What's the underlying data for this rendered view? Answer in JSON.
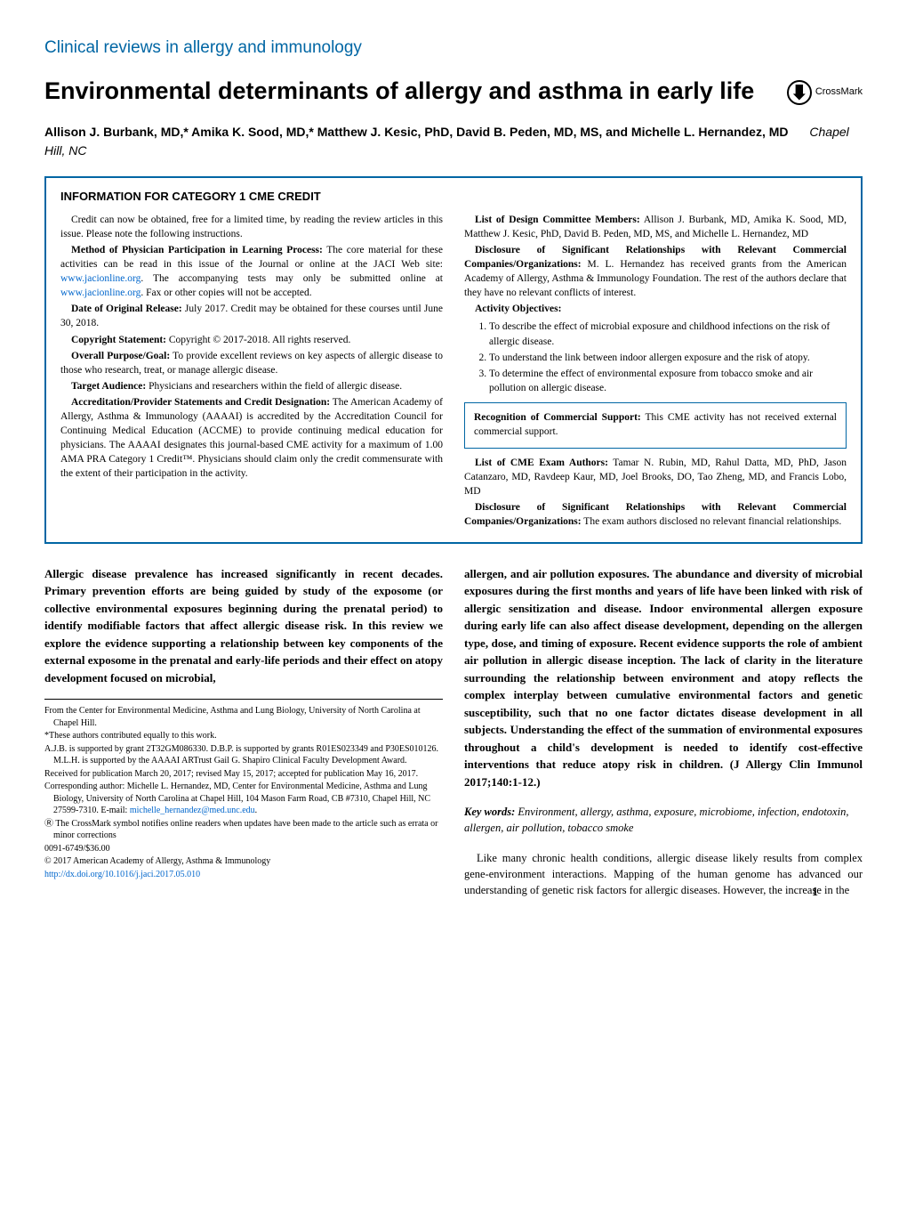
{
  "section_header": "Clinical reviews in allergy and immunology",
  "article_title": "Environmental determinants of allergy and asthma in early life",
  "crossmark_label": "CrossMark",
  "authors_line": "Allison J. Burbank, MD,* Amika K. Sood, MD,* Matthew J. Kesic, PhD, David B. Peden, MD, MS, and Michelle L. Hernandez, MD",
  "authors_location": "Chapel Hill, NC",
  "cme": {
    "heading": "INFORMATION FOR CATEGORY 1 CME CREDIT",
    "left": {
      "intro": "Credit can now be obtained, free for a limited time, by reading the review articles in this issue. Please note the following instructions.",
      "method_label": "Method of Physician Participation in Learning Process:",
      "method_text": " The core material for these activities can be read in this issue of the Journal or online at the JACI Web site: ",
      "method_link1": "www.jacionline.org",
      "method_text2": ". The accompanying tests may only be submitted online at ",
      "method_link2": "www.jacionline.org",
      "method_text3": ". Fax or other copies will not be accepted.",
      "date_label": "Date of Original Release:",
      "date_text": " July 2017. Credit may be obtained for these courses until June 30, 2018.",
      "copyright_label": "Copyright Statement:",
      "copyright_text": " Copyright © 2017-2018. All rights reserved.",
      "purpose_label": "Overall Purpose/Goal:",
      "purpose_text": " To provide excellent reviews on key aspects of allergic disease to those who research, treat, or manage allergic disease.",
      "audience_label": "Target Audience:",
      "audience_text": " Physicians and researchers within the field of allergic disease.",
      "accred_label": "Accreditation/Provider Statements and Credit Designation:",
      "accred_text": " The American Academy of Allergy, Asthma & Immunology (AAAAI) is accredited by the Accreditation Council for Continuing Medical Education (ACCME) to provide continuing medical education for physicians. The AAAAI designates this journal-based CME activity for a maximum of 1.00 AMA PRA Category 1 Credit™. Physicians should claim only the credit commensurate with the extent of their participation in the activity."
    },
    "right": {
      "design_label": "List of Design Committee Members:",
      "design_text": " Allison J. Burbank, MD, Amika K. Sood, MD, Matthew J. Kesic, PhD, David B. Peden, MD, MS, and Michelle L. Hernandez, MD",
      "disc1_label": "Disclosure of Significant Relationships with Relevant Commercial Companies/Organizations:",
      "disc1_text": " M. L. Hernandez has received grants from the American Academy of Allergy, Asthma & Immunology Foundation. The rest of the authors declare that they have no relevant conflicts of interest.",
      "obj_label": "Activity Objectives:",
      "objectives": [
        "To describe the effect of microbial exposure and childhood infections on the risk of allergic disease.",
        "To understand the link between indoor allergen exposure and the risk of atopy.",
        "To determine the effect of environmental exposure from tobacco smoke and air pollution on allergic disease."
      ],
      "support_label": "Recognition of Commercial Support:",
      "support_text": " This CME activity has not received external commercial support.",
      "exam_label": "List of CME Exam Authors:",
      "exam_text": " Tamar N. Rubin, MD, Rahul Datta, MD, PhD, Jason Catanzaro, MD, Ravdeep Kaur, MD, Joel Brooks, DO, Tao Zheng, MD, and Francis Lobo, MD",
      "disc2_label": "Disclosure of Significant Relationships with Relevant Commercial Companies/Organizations:",
      "disc2_text": " The exam authors disclosed no relevant financial relationships."
    }
  },
  "abstract": {
    "left": "Allergic disease prevalence has increased significantly in recent decades. Primary prevention efforts are being guided by study of the exposome (or collective environmental exposures beginning during the prenatal period) to identify modifiable factors that affect allergic disease risk. In this review we explore the evidence supporting a relationship between key components of the external exposome in the prenatal and early-life periods and their effect on atopy development focused on microbial,",
    "right": "allergen, and air pollution exposures. The abundance and diversity of microbial exposures during the first months and years of life have been linked with risk of allergic sensitization and disease. Indoor environmental allergen exposure during early life can also affect disease development, depending on the allergen type, dose, and timing of exposure. Recent evidence supports the role of ambient air pollution in allergic disease inception. The lack of clarity in the literature surrounding the relationship between environment and atopy reflects the complex interplay between cumulative environmental factors and genetic susceptibility, such that no one factor dictates disease development in all subjects. Understanding the effect of the summation of environmental exposures throughout a child's development is needed to identify cost-effective interventions that reduce atopy risk in children. (J Allergy Clin Immunol 2017;140:1-12.)"
  },
  "keywords_label": "Key words:",
  "keywords_text": " Environment, allergy, asthma, exposure, microbiome, infection, endotoxin, allergen, air pollution, tobacco smoke",
  "body_para": "Like many chronic health conditions, allergic disease likely results from complex gene-environment interactions. Mapping of the human genome has advanced our understanding of genetic risk factors for allergic diseases. However, the increase in the",
  "footnotes": {
    "from": "From the Center for Environmental Medicine, Asthma and Lung Biology, University of North Carolina at Chapel Hill.",
    "equal": "*These authors contributed equally to this work.",
    "support": "A.J.B. is supported by grant 2T32GM086330. D.B.P. is supported by grants R01ES023349 and P30ES010126. M.L.H. is supported by the AAAAI ARTrust Gail G. Shapiro Clinical Faculty Development Award.",
    "received": "Received for publication March 20, 2017; revised May 15, 2017; accepted for publication May 16, 2017.",
    "corresponding": "Corresponding author: Michelle L. Hernandez, MD, Center for Environmental Medicine, Asthma and Lung Biology, University of North Carolina at Chapel Hill, 104 Mason Farm Road, CB #7310, Chapel Hill, NC 27599-7310. E-mail: ",
    "corresponding_email": "michelle_hernandez@med.unc.edu",
    "crossmark_note": "Ⓡ The CrossMark symbol notifies online readers when updates have been made to the article such as errata or minor corrections",
    "issn": "0091-6749/$36.00",
    "copyright": "© 2017 American Academy of Allergy, Asthma & Immunology",
    "doi": "http://dx.doi.org/10.1016/j.jaci.2017.05.010"
  },
  "page_number": "1",
  "colors": {
    "accent": "#0066a4",
    "link": "#0066cc",
    "text": "#000000",
    "background": "#ffffff"
  },
  "typography": {
    "body_font": "Georgia, Times New Roman, serif",
    "heading_font": "Arial, Helvetica, sans-serif",
    "section_header_size": 19,
    "title_size": 27,
    "authors_size": 14,
    "cme_size": 11.5,
    "abstract_size": 13,
    "footnote_size": 10
  }
}
